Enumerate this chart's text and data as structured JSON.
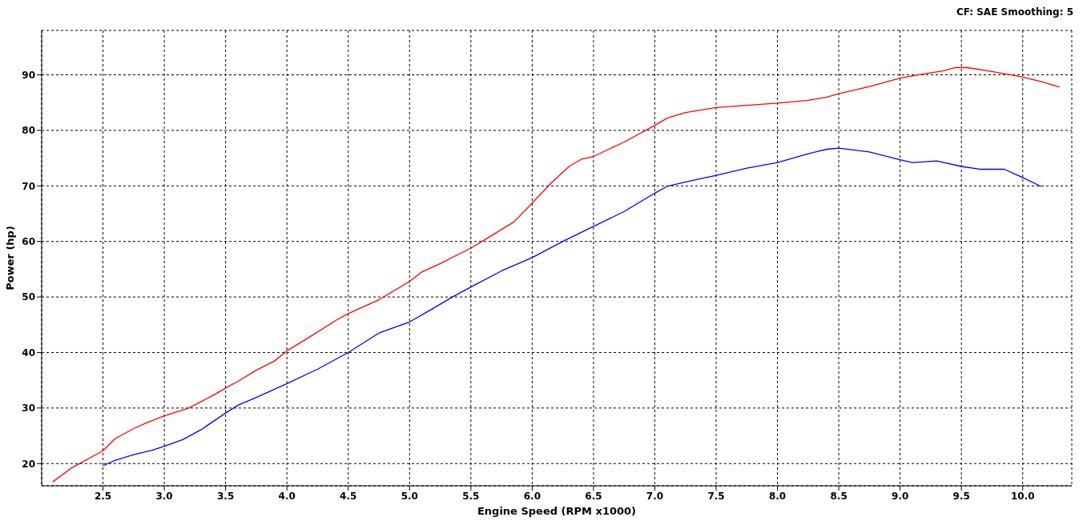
{
  "chart_data": {
    "type": "line",
    "xlabel": "Engine Speed (RPM x1000)",
    "ylabel": "Power (hp)",
    "annotations": [
      "CF: SAE  Smoothing: 5"
    ],
    "xlim": [
      2.0,
      10.4
    ],
    "ylim": [
      16,
      98
    ],
    "xticks": [
      {
        "value": 2.5,
        "label": "2.5"
      },
      {
        "value": 3,
        "label": "3.0"
      },
      {
        "value": 3.5,
        "label": "3.5"
      },
      {
        "value": 4,
        "label": "4.0"
      },
      {
        "value": 4.5,
        "label": "4.5"
      },
      {
        "value": 5,
        "label": "5.0"
      },
      {
        "value": 5.5,
        "label": "5.5"
      },
      {
        "value": 6,
        "label": "6.0"
      },
      {
        "value": 6.5,
        "label": "6.5"
      },
      {
        "value": 7,
        "label": "7.0"
      },
      {
        "value": 7.5,
        "label": "7.5"
      },
      {
        "value": 8,
        "label": "8.0"
      },
      {
        "value": 8.5,
        "label": "8.5"
      },
      {
        "value": 9,
        "label": "9.0"
      },
      {
        "value": 9.5,
        "label": "9.5"
      },
      {
        "value": 10,
        "label": "10.0"
      }
    ],
    "yticks": [
      20,
      30,
      40,
      50,
      60,
      70,
      80,
      90
    ],
    "grid": true,
    "line_style": "solid",
    "marker": "none",
    "series": [
      {
        "color": "#ff0000",
        "x": [
          2.09,
          2.25,
          2.5,
          2.6,
          2.75,
          2.85,
          3.0,
          3.2,
          3.4,
          3.5,
          3.6,
          3.75,
          3.9,
          4.0,
          4.2,
          4.4,
          4.5,
          4.75,
          5.0,
          5.1,
          5.25,
          5.5,
          5.65,
          5.85,
          6.0,
          6.15,
          6.3,
          6.4,
          6.5,
          6.75,
          7.0,
          7.1,
          7.25,
          7.5,
          7.75,
          8.0,
          8.25,
          8.4,
          8.5,
          8.75,
          9.0,
          9.2,
          9.35,
          9.45,
          9.55,
          9.75,
          10.0,
          10.15,
          10.3
        ],
        "values": [
          16.7,
          19.3,
          22.3,
          24.5,
          26.3,
          27.3,
          28.6,
          30.0,
          32.3,
          33.6,
          34.8,
          36.8,
          38.5,
          40.3,
          43.0,
          45.8,
          47.0,
          49.5,
          52.8,
          54.5,
          56.0,
          58.8,
          60.8,
          63.5,
          66.9,
          70.4,
          73.5,
          74.8,
          75.3,
          77.9,
          80.9,
          82.2,
          83.2,
          84.1,
          84.5,
          84.9,
          85.4,
          86.0,
          86.6,
          87.9,
          89.4,
          90.2,
          90.7,
          91.3,
          91.3,
          90.6,
          89.6,
          88.8,
          87.8
        ]
      },
      {
        "color": "#0000ff",
        "x": [
          2.5,
          2.6,
          2.75,
          2.9,
          3.0,
          3.15,
          3.3,
          3.5,
          3.6,
          3.75,
          4.0,
          4.25,
          4.5,
          4.6,
          4.75,
          5.0,
          5.15,
          5.35,
          5.5,
          5.75,
          6.0,
          6.25,
          6.5,
          6.75,
          7.0,
          7.1,
          7.25,
          7.5,
          7.75,
          8.0,
          8.25,
          8.4,
          8.5,
          8.75,
          9.0,
          9.1,
          9.3,
          9.5,
          9.65,
          9.85,
          10.0,
          10.15
        ],
        "values": [
          19.6,
          20.6,
          21.6,
          22.4,
          23.1,
          24.3,
          26.1,
          29.1,
          30.5,
          31.9,
          34.4,
          37.0,
          40.0,
          41.4,
          43.5,
          45.5,
          47.4,
          50.0,
          51.8,
          54.7,
          57.1,
          60.0,
          62.7,
          65.4,
          68.7,
          69.9,
          70.7,
          71.9,
          73.2,
          74.2,
          75.8,
          76.6,
          76.8,
          76.1,
          74.7,
          74.2,
          74.5,
          73.5,
          73.0,
          73.0,
          71.5,
          69.9
        ]
      }
    ]
  }
}
